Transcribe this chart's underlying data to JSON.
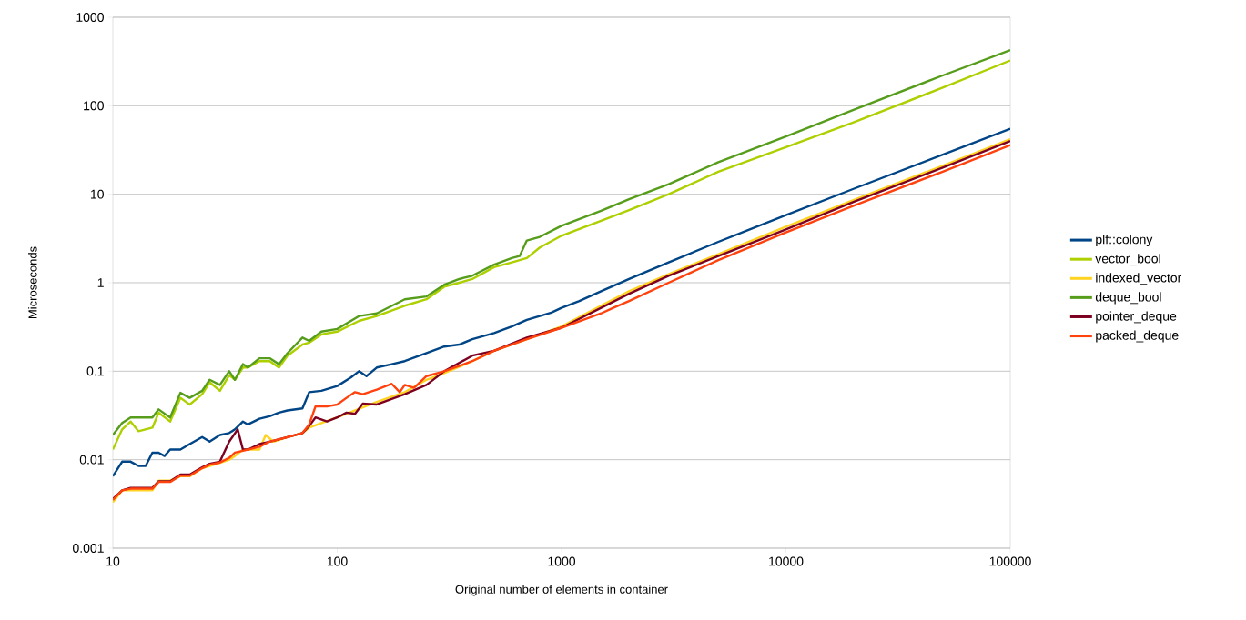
{
  "chart_data": {
    "type": "line",
    "xlabel": "Original number of elements in container",
    "ylabel": "Microseconds",
    "log": "xy",
    "grid": "y",
    "legend": "right",
    "line_style": "solid",
    "xlim": [
      10,
      100000
    ],
    "xticks": [
      10,
      100,
      1000,
      10000,
      100000
    ],
    "ylim": [
      0.001,
      1000
    ],
    "yticks": [
      0.001,
      0.01,
      0.1,
      1,
      10,
      100,
      1000
    ],
    "series": [
      {
        "name": "plf::colony",
        "color": "#004586",
        "x": [
          10,
          11,
          12,
          13,
          14,
          15,
          16,
          17,
          18,
          20,
          22,
          25,
          27,
          30,
          33,
          35,
          38,
          40,
          45,
          50,
          55,
          60,
          70,
          75,
          85,
          100,
          115,
          125,
          135,
          150,
          175,
          200,
          250,
          300,
          350,
          400,
          500,
          600,
          700,
          800,
          900,
          1000,
          1200,
          1500,
          2000,
          3000,
          5000,
          10000,
          20000,
          50000,
          100000
        ],
        "values": [
          0.0065,
          0.0095,
          0.0095,
          0.0085,
          0.0085,
          0.012,
          0.012,
          0.011,
          0.013,
          0.013,
          0.015,
          0.018,
          0.016,
          0.019,
          0.02,
          0.022,
          0.027,
          0.025,
          0.029,
          0.031,
          0.034,
          0.036,
          0.038,
          0.058,
          0.06,
          0.068,
          0.085,
          0.1,
          0.088,
          0.11,
          0.12,
          0.13,
          0.16,
          0.19,
          0.2,
          0.23,
          0.27,
          0.32,
          0.38,
          0.42,
          0.46,
          0.52,
          0.62,
          0.8,
          1.1,
          1.7,
          2.9,
          5.8,
          11.5,
          28,
          55
        ]
      },
      {
        "name": "vector_bool",
        "color": "#aecf00",
        "x": [
          10,
          11,
          12,
          13,
          15,
          16,
          18,
          20,
          22,
          25,
          27,
          30,
          33,
          35,
          38,
          40,
          45,
          50,
          55,
          60,
          70,
          75,
          85,
          100,
          125,
          150,
          200,
          250,
          300,
          350,
          400,
          500,
          600,
          700,
          800,
          1000,
          1500,
          2000,
          3000,
          5000,
          10000,
          20000,
          50000,
          100000
        ],
        "values": [
          0.013,
          0.022,
          0.027,
          0.021,
          0.023,
          0.034,
          0.027,
          0.05,
          0.042,
          0.055,
          0.075,
          0.06,
          0.09,
          0.08,
          0.11,
          0.11,
          0.13,
          0.13,
          0.11,
          0.15,
          0.2,
          0.21,
          0.26,
          0.28,
          0.37,
          0.42,
          0.55,
          0.65,
          0.9,
          1.0,
          1.1,
          1.5,
          1.7,
          1.9,
          2.5,
          3.4,
          5.0,
          6.6,
          10,
          18,
          34,
          65,
          160,
          325
        ]
      },
      {
        "name": "indexed_vector",
        "color": "#ffd320",
        "x": [
          10,
          11,
          12,
          13,
          15,
          16,
          18,
          20,
          22,
          25,
          27,
          30,
          33,
          35,
          38,
          40,
          45,
          48,
          52,
          60,
          70,
          75,
          85,
          100,
          150,
          200,
          250,
          300,
          400,
          500,
          700,
          1000,
          1500,
          2000,
          3000,
          5000,
          10000,
          20000,
          50000,
          100000
        ],
        "values": [
          0.0033,
          0.0045,
          0.0045,
          0.0045,
          0.0045,
          0.0058,
          0.0058,
          0.0065,
          0.0065,
          0.008,
          0.0085,
          0.0092,
          0.01,
          0.011,
          0.013,
          0.013,
          0.013,
          0.019,
          0.016,
          0.018,
          0.02,
          0.023,
          0.026,
          0.03,
          0.045,
          0.058,
          0.08,
          0.095,
          0.13,
          0.17,
          0.23,
          0.32,
          0.55,
          0.8,
          1.25,
          2.1,
          4.3,
          8.6,
          21,
          42
        ]
      },
      {
        "name": "deque_bool",
        "color": "#579d1c",
        "x": [
          10,
          11,
          12,
          13,
          15,
          16,
          18,
          20,
          22,
          25,
          27,
          30,
          33,
          35,
          38,
          40,
          45,
          50,
          55,
          60,
          70,
          75,
          85,
          100,
          125,
          150,
          200,
          250,
          300,
          350,
          400,
          500,
          600,
          650,
          700,
          800,
          1000,
          1500,
          2000,
          3000,
          5000,
          10000,
          20000,
          50000,
          100000
        ],
        "values": [
          0.019,
          0.026,
          0.03,
          0.03,
          0.03,
          0.037,
          0.03,
          0.057,
          0.05,
          0.06,
          0.08,
          0.07,
          0.1,
          0.08,
          0.12,
          0.11,
          0.14,
          0.14,
          0.12,
          0.16,
          0.24,
          0.22,
          0.28,
          0.3,
          0.42,
          0.45,
          0.65,
          0.7,
          0.95,
          1.1,
          1.2,
          1.6,
          1.9,
          2.0,
          3.0,
          3.3,
          4.4,
          6.5,
          8.8,
          13,
          23,
          45,
          90,
          220,
          425
        ]
      },
      {
        "name": "pointer_deque",
        "color": "#7e0021",
        "x": [
          10,
          11,
          12,
          13,
          15,
          16,
          18,
          20,
          22,
          25,
          27,
          30,
          33,
          36,
          38,
          40,
          45,
          50,
          60,
          70,
          75,
          80,
          90,
          100,
          110,
          120,
          130,
          150,
          200,
          250,
          300,
          400,
          500,
          700,
          1000,
          1500,
          2000,
          3000,
          5000,
          10000,
          20000,
          50000,
          100000
        ],
        "values": [
          0.0036,
          0.0045,
          0.0048,
          0.0048,
          0.0048,
          0.0057,
          0.0057,
          0.0068,
          0.0068,
          0.0082,
          0.009,
          0.0095,
          0.016,
          0.022,
          0.013,
          0.013,
          0.015,
          0.016,
          0.018,
          0.02,
          0.024,
          0.03,
          0.027,
          0.03,
          0.034,
          0.033,
          0.043,
          0.042,
          0.055,
          0.07,
          0.1,
          0.15,
          0.17,
          0.24,
          0.31,
          0.52,
          0.75,
          1.2,
          2.0,
          4.0,
          8.2,
          20,
          40
        ]
      },
      {
        "name": "packed_deque",
        "color": "#ff420e",
        "x": [
          10,
          11,
          12,
          13,
          15,
          16,
          18,
          20,
          22,
          25,
          27,
          30,
          33,
          35,
          40,
          45,
          50,
          60,
          70,
          75,
          80,
          90,
          100,
          110,
          120,
          130,
          150,
          175,
          190,
          200,
          220,
          250,
          300,
          400,
          500,
          700,
          1000,
          1500,
          1700,
          2000,
          3000,
          5000,
          10000,
          20000,
          50000,
          100000
        ],
        "values": [
          0.0035,
          0.0045,
          0.0047,
          0.0047,
          0.0047,
          0.0056,
          0.0056,
          0.0066,
          0.0066,
          0.008,
          0.0088,
          0.0093,
          0.0105,
          0.012,
          0.013,
          0.014,
          0.016,
          0.018,
          0.02,
          0.025,
          0.04,
          0.04,
          0.042,
          0.05,
          0.058,
          0.055,
          0.062,
          0.072,
          0.058,
          0.07,
          0.065,
          0.088,
          0.1,
          0.13,
          0.17,
          0.23,
          0.31,
          0.45,
          0.52,
          0.62,
          1.0,
          1.8,
          3.7,
          7.4,
          18,
          36
        ]
      }
    ]
  }
}
